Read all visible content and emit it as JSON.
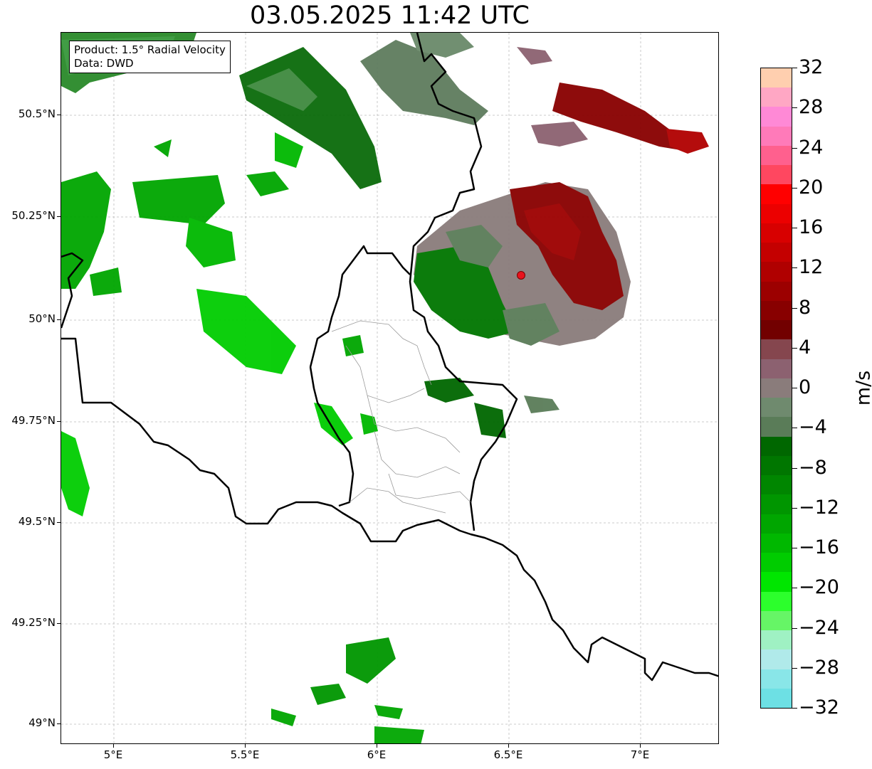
{
  "title": "03.05.2025 11:42 UTC",
  "info": {
    "product": "Product: 1.5° Radial Velocity",
    "source": "Data: DWD"
  },
  "axes": {
    "xticks": [
      "5°E",
      "5.5°E",
      "6°E",
      "6.5°E",
      "7°E"
    ],
    "yticks": [
      "50.5°N",
      "50.25°N",
      "50°N",
      "49.75°N",
      "49.5°N",
      "49.25°N",
      "49°N"
    ],
    "lon_range": [
      4.8,
      7.3
    ],
    "lat_range": [
      48.95,
      50.7
    ]
  },
  "radar_site": {
    "lon": 6.55,
    "lat": 50.11,
    "marker_color": "#e8131d"
  },
  "colorbar": {
    "unit": "m/s",
    "min": -32,
    "max": 32,
    "labels": [
      "32",
      "28",
      "24",
      "20",
      "16",
      "12",
      "8",
      "4",
      "0",
      "−4",
      "−8",
      "−12",
      "−16",
      "−20",
      "−24",
      "−28",
      "−32"
    ],
    "colors_top_to_bottom": [
      "#ffcfaf",
      "#ffa7c4",
      "#ff89d6",
      "#ff7ab9",
      "#ff608e",
      "#ff4760",
      "#ff0000",
      "#ec0000",
      "#d80000",
      "#c40000",
      "#b00000",
      "#9c0000",
      "#880000",
      "#720000",
      "#85464e",
      "#8c6170",
      "#8a7c7b",
      "#6f8a6e",
      "#5a7c58",
      "#006700",
      "#007600",
      "#008600",
      "#009600",
      "#00a600",
      "#00b800",
      "#00cc00",
      "#00e600",
      "#2cff2c",
      "#66f566",
      "#9ff1c3",
      "#b0eaea",
      "#89e6e8",
      "#6de0e4"
    ]
  },
  "chart_data": {
    "type": "map",
    "title": "03.05.2025 11:42 UTC",
    "colorbar_unit": "m/s",
    "colorbar_range": [
      -32,
      32
    ],
    "grid": true
  }
}
